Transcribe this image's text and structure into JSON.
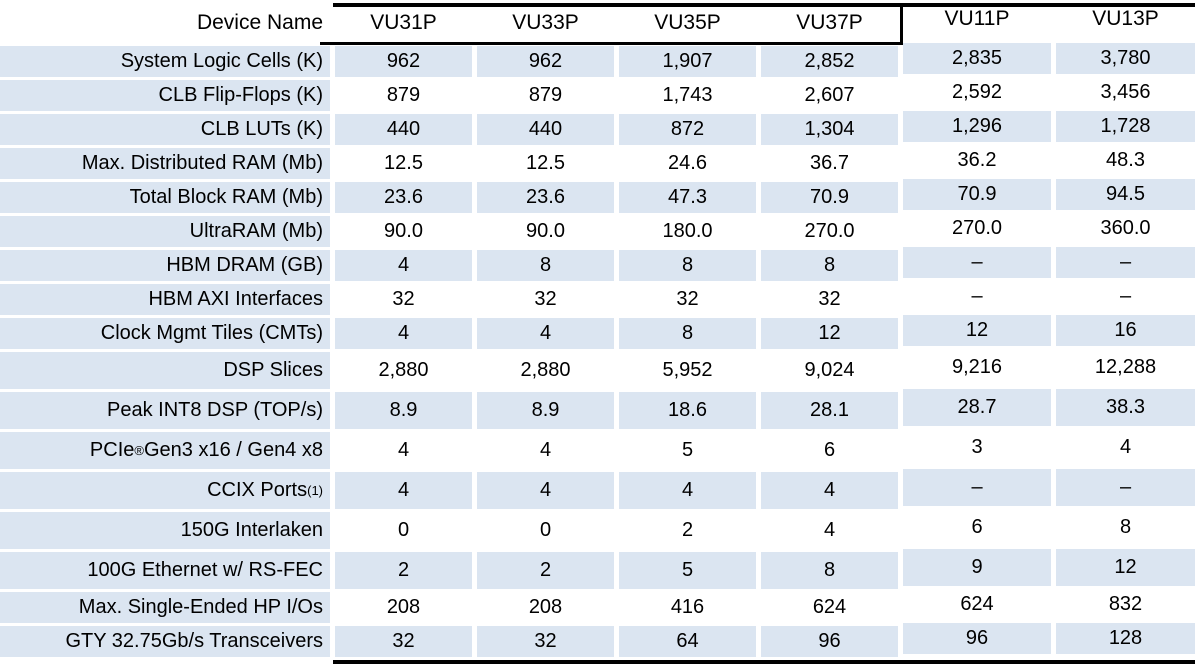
{
  "table": {
    "corner_label": "Device Name",
    "devices": [
      "VU31P",
      "VU33P",
      "VU35P",
      "VU37P",
      "VU11P",
      "VU13P"
    ],
    "rows": [
      {
        "label": "System Logic Cells (K)",
        "values": [
          "962",
          "962",
          "1,907",
          "2,852",
          "2,835",
          "3,780"
        ]
      },
      {
        "label": "CLB Flip-Flops (K)",
        "values": [
          "879",
          "879",
          "1,743",
          "2,607",
          "2,592",
          "3,456"
        ]
      },
      {
        "label": "CLB LUTs (K)",
        "values": [
          "440",
          "440",
          "872",
          "1,304",
          "1,296",
          "1,728"
        ]
      },
      {
        "label": "Max. Distributed RAM (Mb)",
        "values": [
          "12.5",
          "12.5",
          "24.6",
          "36.7",
          "36.2",
          "48.3"
        ]
      },
      {
        "label": "Total Block RAM (Mb)",
        "values": [
          "23.6",
          "23.6",
          "47.3",
          "70.9",
          "70.9",
          "94.5"
        ]
      },
      {
        "label": "UltraRAM (Mb)",
        "values": [
          "90.0",
          "90.0",
          "180.0",
          "270.0",
          "270.0",
          "360.0"
        ]
      },
      {
        "label": "HBM DRAM (GB)",
        "values": [
          "4",
          "8",
          "8",
          "8",
          "–",
          "–"
        ]
      },
      {
        "label": "HBM AXI Interfaces",
        "values": [
          "32",
          "32",
          "32",
          "32",
          "–",
          "–"
        ]
      },
      {
        "label": "Clock Mgmt Tiles (CMTs)",
        "values": [
          "4",
          "4",
          "8",
          "12",
          "12",
          "16"
        ]
      },
      {
        "label": "DSP Slices",
        "values": [
          "2,880",
          "2,880",
          "5,952",
          "9,024",
          "9,216",
          "12,288"
        ]
      },
      {
        "label": "Peak INT8 DSP (TOP/s)",
        "values": [
          "8.9",
          "8.9",
          "18.6",
          "28.1",
          "28.7",
          "38.3"
        ]
      },
      {
        "label": "PCIe",
        "label_sup": "®",
        "label_tail": " Gen3 x16 / Gen4 x8",
        "values": [
          "4",
          "4",
          "5",
          "6",
          "3",
          "4"
        ]
      },
      {
        "label": "CCIX Ports",
        "label_sup": "(1)",
        "values": [
          "4",
          "4",
          "4",
          "4",
          "–",
          "–"
        ]
      },
      {
        "label": "150G Interlaken",
        "values": [
          "0",
          "0",
          "2",
          "4",
          "6",
          "8"
        ]
      },
      {
        "label": "100G Ethernet w/ RS-FEC",
        "values": [
          "2",
          "2",
          "5",
          "8",
          "9",
          "12"
        ]
      },
      {
        "label": "Max. Single-Ended HP I/Os",
        "values": [
          "208",
          "208",
          "416",
          "624",
          "624",
          "832"
        ]
      },
      {
        "label": "GTY 32.75Gb/s Transceivers",
        "values": [
          "32",
          "32",
          "64",
          "96",
          "96",
          "128"
        ]
      }
    ],
    "colors": {
      "row_fill": "#dbe5f1",
      "border": "#000000",
      "text": "#000000",
      "background": "#ffffff"
    }
  },
  "chart_data": {
    "type": "table",
    "title": "Device Name",
    "columns": [
      "VU31P",
      "VU33P",
      "VU35P",
      "VU37P",
      "VU11P",
      "VU13P"
    ],
    "rows": [
      {
        "metric": "System Logic Cells (K)",
        "values": [
          962,
          962,
          1907,
          2852,
          2835,
          3780
        ]
      },
      {
        "metric": "CLB Flip-Flops (K)",
        "values": [
          879,
          879,
          1743,
          2607,
          2592,
          3456
        ]
      },
      {
        "metric": "CLB LUTs (K)",
        "values": [
          440,
          440,
          872,
          1304,
          1296,
          1728
        ]
      },
      {
        "metric": "Max. Distributed RAM (Mb)",
        "values": [
          12.5,
          12.5,
          24.6,
          36.7,
          36.2,
          48.3
        ]
      },
      {
        "metric": "Total Block RAM (Mb)",
        "values": [
          23.6,
          23.6,
          47.3,
          70.9,
          70.9,
          94.5
        ]
      },
      {
        "metric": "UltraRAM (Mb)",
        "values": [
          90.0,
          90.0,
          180.0,
          270.0,
          270.0,
          360.0
        ]
      },
      {
        "metric": "HBM DRAM (GB)",
        "values": [
          4,
          8,
          8,
          8,
          null,
          null
        ]
      },
      {
        "metric": "HBM AXI Interfaces",
        "values": [
          32,
          32,
          32,
          32,
          null,
          null
        ]
      },
      {
        "metric": "Clock Mgmt Tiles (CMTs)",
        "values": [
          4,
          4,
          8,
          12,
          12,
          16
        ]
      },
      {
        "metric": "DSP Slices",
        "values": [
          2880,
          2880,
          5952,
          9024,
          9216,
          12288
        ]
      },
      {
        "metric": "Peak INT8 DSP (TOP/s)",
        "values": [
          8.9,
          8.9,
          18.6,
          28.1,
          28.7,
          38.3
        ]
      },
      {
        "metric": "PCIe® Gen3 x16 / Gen4 x8",
        "values": [
          4,
          4,
          5,
          6,
          3,
          4
        ]
      },
      {
        "metric": "CCIX Ports(1)",
        "values": [
          4,
          4,
          4,
          4,
          null,
          null
        ]
      },
      {
        "metric": "150G Interlaken",
        "values": [
          0,
          0,
          2,
          4,
          6,
          8
        ]
      },
      {
        "metric": "100G Ethernet w/ RS-FEC",
        "values": [
          2,
          2,
          5,
          8,
          9,
          12
        ]
      },
      {
        "metric": "Max. Single-Ended HP I/Os",
        "values": [
          208,
          208,
          416,
          624,
          624,
          832
        ]
      },
      {
        "metric": "GTY 32.75Gb/s Transceivers",
        "values": [
          32,
          32,
          64,
          96,
          96,
          128
        ]
      }
    ]
  }
}
